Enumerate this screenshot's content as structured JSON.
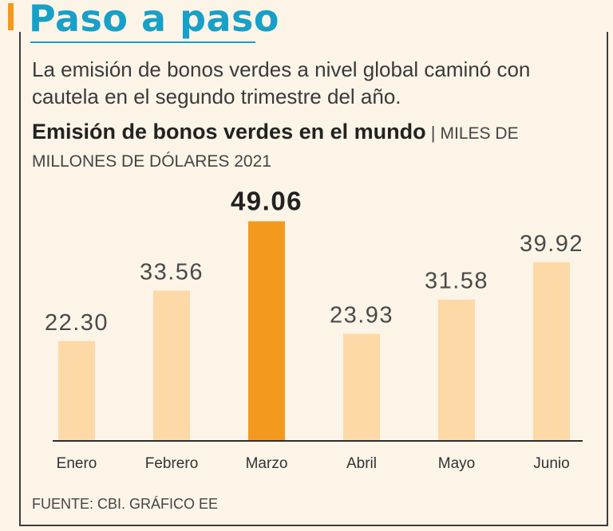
{
  "header": {
    "title": "Paso a paso",
    "subtitle": "La emisión de bonos verdes a nivel global caminó con cautela en el segundo trimestre del año."
  },
  "chart_title": {
    "bold": "Emisión de bonos verdes en el mundo",
    "separator": " | ",
    "units": "Miles de millones de dólares 2021"
  },
  "source": "FUENTE: CBI. GRÁFICO EE",
  "colors": {
    "accent": "#f39a1e",
    "title_blue": "#17a0c8",
    "bar": "#fdd9a8",
    "bar_highlight": "#f39a1e"
  },
  "chart_data": {
    "type": "bar",
    "title": "Emisión de bonos verdes en el mundo",
    "ylabel": "Miles de millones de dólares 2021",
    "xlabel": "",
    "categories": [
      "Enero",
      "Febrero",
      "Marzo",
      "Abril",
      "Mayo",
      "Junio"
    ],
    "values": [
      22.3,
      33.56,
      49.06,
      23.93,
      31.58,
      39.92
    ],
    "value_labels": [
      "22.30",
      "33.56",
      "49.06",
      "23.93",
      "31.58",
      "39.92"
    ],
    "highlight_index": 2,
    "ylim": [
      0,
      52
    ],
    "grid": false
  }
}
